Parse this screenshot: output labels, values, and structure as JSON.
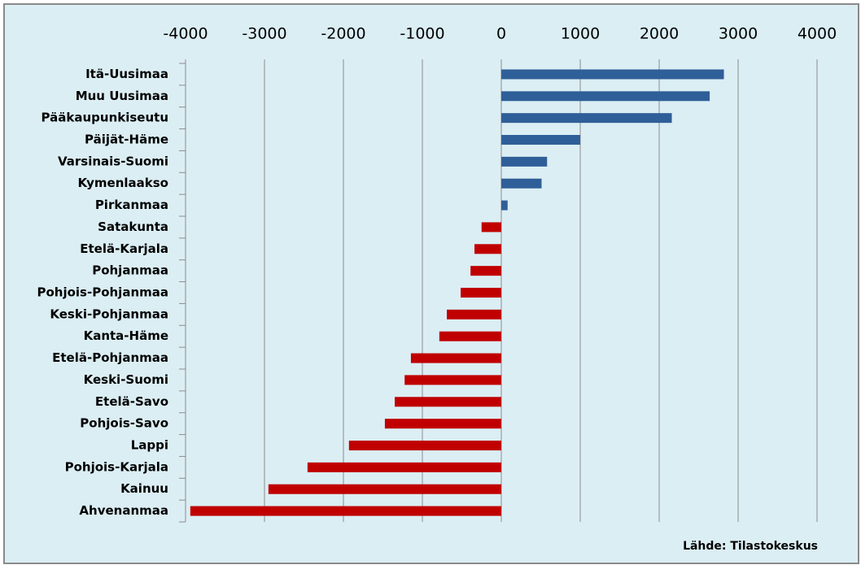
{
  "chart_data": {
    "type": "hbar",
    "categories": [
      "Itä-Uusimaa",
      "Muu Uusimaa",
      "Pääkaupunkiseutu",
      "Päijät-Häme",
      "Varsinais-Suomi",
      "Kymenlaakso",
      "Pirkanmaa",
      "Satakunta",
      "Etelä-Karjala",
      "Pohjanmaa",
      "Pohjois-Pohjanmaa",
      "Keski-Pohjanmaa",
      "Kanta-Häme",
      "Etelä-Pohjanmaa",
      "Keski-Suomi",
      "Etelä-Savo",
      "Pohjois-Savo",
      "Lappi",
      "Pohjois-Karjala",
      "Kainuu",
      "Ahvenanmaa"
    ],
    "values": [
      2820,
      2640,
      2160,
      1000,
      580,
      510,
      80,
      -250,
      -340,
      -390,
      -515,
      -690,
      -785,
      -1145,
      -1225,
      -1350,
      -1475,
      -1930,
      -2455,
      -2950,
      -3940
    ],
    "color_positive": "#2f5f98",
    "color_negative": "#c00000",
    "xlim": [
      -4000,
      4000
    ],
    "xticks": [
      -4000,
      -3000,
      -2000,
      -1000,
      0,
      1000,
      2000,
      3000,
      4000
    ],
    "grid": true,
    "source": "Lähde: Tilastokeskus"
  }
}
